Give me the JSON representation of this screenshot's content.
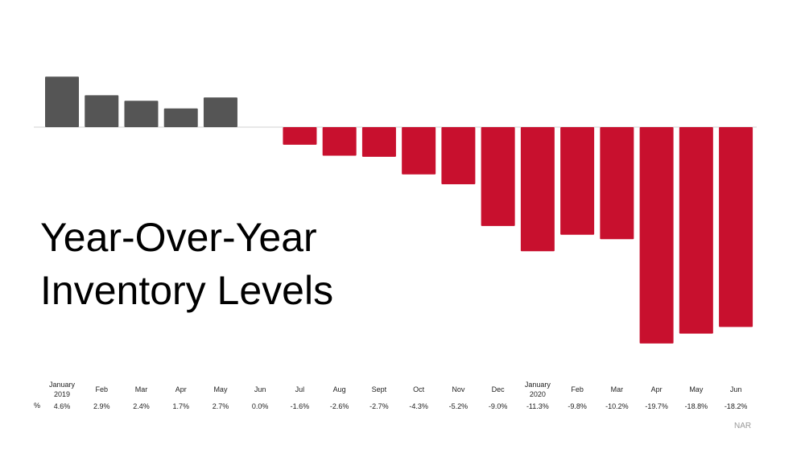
{
  "chart_data": {
    "type": "bar",
    "title": "Year-Over-Year Inventory Levels",
    "categories": [
      "January 2019",
      "Feb",
      "Mar",
      "Apr",
      "May",
      "Jun",
      "Jul",
      "Aug",
      "Sept",
      "Oct",
      "Nov",
      "Dec",
      "January 2020",
      "Feb",
      "Mar",
      "Apr",
      "May",
      "Jun"
    ],
    "values": [
      4.6,
      2.9,
      2.4,
      1.7,
      2.7,
      0.0,
      -1.6,
      -2.6,
      -2.7,
      -4.3,
      -5.2,
      -9.0,
      -11.3,
      -9.8,
      -10.2,
      -19.7,
      -18.8,
      -18.2
    ],
    "value_labels": [
      "4.6%",
      "2.9%",
      "2.4%",
      "1.7%",
      "2.7%",
      "0.0%",
      "-1.6%",
      "-2.6%",
      "-2.7%",
      "-4.3%",
      "-5.2%",
      "-9.0%",
      "-11.3%",
      "-9.8%",
      "-10.2%",
      "-19.7%",
      "-18.8%",
      "-18.2%"
    ],
    "row_label": "%",
    "positive_color": "#555555",
    "negative_color": "#c8102e",
    "source": "NAR"
  }
}
